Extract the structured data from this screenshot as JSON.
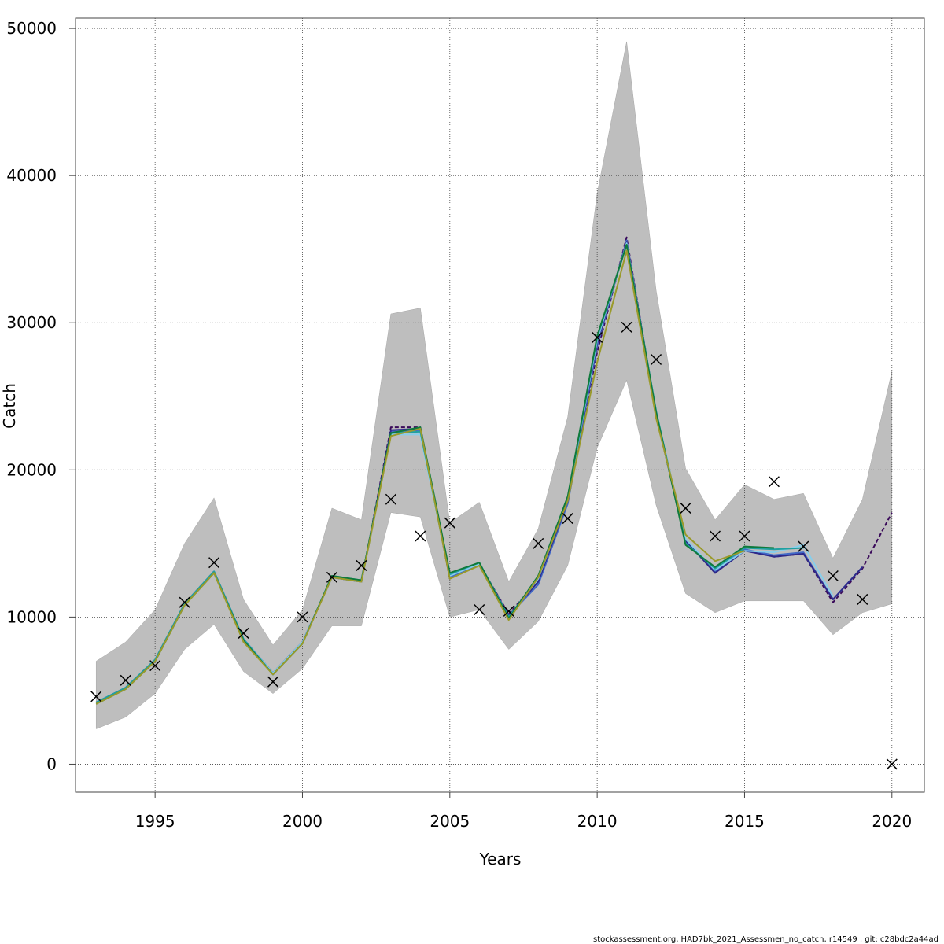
{
  "chart_data": {
    "type": "line",
    "xlabel": "Years",
    "ylabel": "Catch",
    "xlim": [
      1992.3,
      2021.1
    ],
    "ylim": [
      -1900,
      50700
    ],
    "x_ticks": [
      1995,
      2000,
      2005,
      2010,
      2015,
      2020
    ],
    "y_ticks": [
      0,
      10000,
      20000,
      30000,
      40000,
      50000
    ],
    "grid": true,
    "footer": "stockassessment.org, HAD7bk_2021_Assessmen_no_catch, r14549 , git: c28bdc2a44ad",
    "band": {
      "color": "#bebebe",
      "x": [
        1993,
        1994,
        1995,
        1996,
        1997,
        1998,
        1999,
        2000,
        2001,
        2002,
        2003,
        2004,
        2005,
        2006,
        2007,
        2008,
        2009,
        2010,
        2011,
        2012,
        2013,
        2014,
        2015,
        2016,
        2017,
        2018,
        2019,
        2020
      ],
      "upper": [
        7000,
        8300,
        10500,
        15000,
        18100,
        11200,
        8100,
        10500,
        17400,
        16600,
        30600,
        31000,
        16400,
        17800,
        12400,
        16000,
        23600,
        38800,
        49100,
        32200,
        20100,
        16600,
        19000,
        18000,
        18400,
        14000,
        18000,
        26700
      ],
      "lower": [
        2400,
        3200,
        4800,
        7800,
        9500,
        6300,
        4800,
        6500,
        9400,
        9400,
        17100,
        16800,
        10000,
        10500,
        7800,
        9700,
        13500,
        21500,
        26100,
        17600,
        11600,
        10300,
        11100,
        11100,
        11100,
        8800,
        10300,
        10900
      ]
    },
    "series": [
      {
        "color": "#3a0a5a",
        "dash": "5,3",
        "x": [
          1993,
          1994,
          1995,
          1996,
          1997,
          1998,
          1999,
          2000,
          2001,
          2002,
          2003,
          2004,
          2005,
          2006,
          2007,
          2008,
          2009,
          2010,
          2011,
          2012,
          2013,
          2014,
          2015,
          2016,
          2017,
          2018,
          2019,
          2020
        ],
        "values": [
          4200,
          5200,
          7100,
          10900,
          13100,
          8500,
          6200,
          8300,
          12700,
          12400,
          22900,
          22900,
          12600,
          13600,
          10200,
          12500,
          18000,
          28000,
          35800,
          23700,
          15200,
          13000,
          14600,
          14100,
          14300,
          11000,
          13300,
          17100
        ]
      },
      {
        "color": "#4169c8",
        "x": [
          1993,
          1994,
          1995,
          1996,
          1997,
          1998,
          1999,
          2000,
          2001,
          2002,
          2003,
          2004,
          2005,
          2006,
          2007,
          2008,
          2009,
          2010,
          2011,
          2012,
          2013,
          2014,
          2015,
          2016,
          2017,
          2018,
          2019
        ],
        "values": [
          4200,
          5200,
          7100,
          10900,
          13100,
          8500,
          6200,
          8300,
          12700,
          12400,
          22600,
          22700,
          12700,
          13600,
          10100,
          12200,
          17700,
          28400,
          35600,
          23800,
          15100,
          13100,
          14600,
          14200,
          14400,
          11200,
          13400
        ]
      },
      {
        "color": "#2e2a8a",
        "x": [
          1993,
          1994,
          1995,
          1996,
          1997,
          1998,
          1999,
          2000,
          2001,
          2002,
          2003,
          2004,
          2005,
          2006,
          2007,
          2008,
          2009,
          2010,
          2011,
          2012,
          2013,
          2014,
          2015,
          2016,
          2017,
          2018,
          2019
        ],
        "values": [
          4200,
          5200,
          7100,
          10900,
          13100,
          8500,
          6200,
          8300,
          12700,
          12400,
          22700,
          22800,
          12800,
          13600,
          10100,
          12400,
          17900,
          28600,
          35500,
          23900,
          15200,
          13000,
          14500,
          14100,
          14300,
          11200,
          13400
        ]
      },
      {
        "color": "#87ceeb",
        "x": [
          1993,
          1994,
          1995,
          1996,
          1997,
          1998,
          1999,
          2000,
          2001,
          2002,
          2003,
          2004,
          2005,
          2006,
          2007,
          2008,
          2009,
          2010,
          2011,
          2012,
          2013,
          2014,
          2015,
          2016,
          2017,
          2018
        ],
        "values": [
          4200,
          5200,
          7100,
          10900,
          13100,
          8500,
          6200,
          8300,
          12700,
          12400,
          22400,
          22400,
          12800,
          13600,
          10000,
          12600,
          18000,
          28800,
          35400,
          23900,
          15300,
          13200,
          14500,
          14400,
          14900,
          11400
        ]
      },
      {
        "color": "#20a0a0",
        "x": [
          1993,
          1994,
          1995,
          1996,
          1997,
          1998,
          1999,
          2000,
          2001,
          2002,
          2003,
          2004,
          2005,
          2006,
          2007,
          2008,
          2009,
          2010,
          2011,
          2012,
          2013,
          2014,
          2015,
          2016,
          2017
        ],
        "values": [
          4200,
          5200,
          7100,
          10900,
          13100,
          8500,
          6100,
          8200,
          12800,
          12500,
          22500,
          22600,
          12900,
          13700,
          10000,
          12700,
          18100,
          29000,
          35300,
          24000,
          15000,
          13300,
          14700,
          14600,
          14700
        ]
      },
      {
        "color": "#0f7a3c",
        "x": [
          1993,
          1994,
          1995,
          1996,
          1997,
          1998,
          1999,
          2000,
          2001,
          2002,
          2003,
          2004,
          2005,
          2006,
          2007,
          2008,
          2009,
          2010,
          2011,
          2012,
          2013,
          2014,
          2015,
          2016
        ],
        "values": [
          4100,
          5100,
          7000,
          10800,
          13000,
          8400,
          6100,
          8200,
          12800,
          12500,
          22500,
          22900,
          13000,
          13700,
          9900,
          12800,
          18200,
          29100,
          35300,
          23900,
          14900,
          13400,
          14800,
          14700
        ]
      },
      {
        "color": "#9a9a2a",
        "x": [
          1993,
          1994,
          1995,
          1996,
          1997,
          1998,
          1999,
          2000,
          2001,
          2002,
          2003,
          2004,
          2005,
          2006,
          2007,
          2008,
          2009,
          2010,
          2011,
          2012,
          2013,
          2014,
          2015
        ],
        "values": [
          4100,
          5100,
          7000,
          10800,
          13000,
          8300,
          6100,
          8200,
          12700,
          12400,
          22300,
          22800,
          12600,
          13500,
          9800,
          12700,
          17900,
          27300,
          34900,
          23500,
          15600,
          13800,
          14500
        ]
      }
    ],
    "observed": {
      "marker": "x",
      "x": [
        1993,
        1994,
        1995,
        1996,
        1997,
        1998,
        1999,
        2000,
        2001,
        2002,
        2003,
        2004,
        2005,
        2006,
        2007,
        2008,
        2009,
        2010,
        2011,
        2012,
        2013,
        2014,
        2015,
        2016,
        2017,
        2018,
        2019,
        2020
      ],
      "values": [
        4600,
        5700,
        6700,
        11000,
        13700,
        8900,
        5600,
        10000,
        12700,
        13500,
        18000,
        15500,
        16400,
        10500,
        10400,
        15000,
        16700,
        29000,
        29700,
        27500,
        17400,
        15500,
        15500,
        19200,
        14800,
        12800,
        11200,
        0
      ]
    }
  }
}
